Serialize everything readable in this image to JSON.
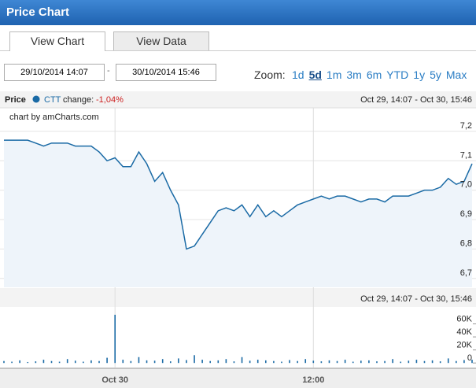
{
  "header": {
    "title": "Price Chart"
  },
  "tabs": [
    "View Chart",
    "View Data"
  ],
  "date_range": {
    "from": "29/10/2014 14:07",
    "separator": "-",
    "to": "30/10/2014 15:46"
  },
  "zoom": {
    "label": "Zoom:",
    "options": [
      "1d",
      "5d",
      "1m",
      "3m",
      "6m",
      "YTD",
      "1y",
      "5y",
      "Max"
    ],
    "selected": "5d"
  },
  "chart_data": {
    "type": "stock",
    "legend_title": "Price",
    "change_label": "change:",
    "change": "-1,04%",
    "range_label": "Oct 29, 14:07 - Oct 30, 15:46",
    "credit": "chart by amCharts.com",
    "grid": true,
    "categories": [
      null,
      null,
      null,
      null,
      null,
      null,
      null,
      null,
      null,
      null,
      null,
      null,
      null,
      null,
      "Oct 30",
      null,
      null,
      null,
      null,
      null,
      null,
      null,
      null,
      null,
      null,
      null,
      null,
      null,
      null,
      null,
      null,
      null,
      null,
      null,
      null,
      null,
      null,
      null,
      null,
      "12:00",
      null,
      null,
      null,
      null,
      null,
      null,
      null,
      null,
      null,
      null,
      null,
      null,
      null,
      null,
      null,
      null,
      null,
      null,
      null,
      null
    ],
    "ylim": [
      6.67,
      7.28
    ],
    "yticks": [
      {
        "value": 6.7,
        "label": "6,7"
      },
      {
        "value": 6.8,
        "label": "6,8"
      },
      {
        "value": 6.9,
        "label": "6,9"
      },
      {
        "value": 7.0,
        "label": "7,0"
      },
      {
        "value": 7.1,
        "label": "7,1"
      },
      {
        "value": 7.2,
        "label": "7,2"
      }
    ],
    "y2lim": [
      -7000,
      86000
    ],
    "y2ticks": [
      {
        "value": 0,
        "label": "0"
      },
      {
        "value": 20000,
        "label": "20K"
      },
      {
        "value": 40000,
        "label": "40K"
      },
      {
        "value": 60000,
        "label": "60K"
      }
    ],
    "series": [
      {
        "name": "CTT",
        "color": "#1a6aa5",
        "fill": "#eef4fa",
        "values": [
          7.17,
          7.17,
          7.17,
          7.17,
          7.16,
          7.15,
          7.16,
          7.16,
          7.16,
          7.15,
          7.15,
          7.15,
          7.13,
          7.1,
          7.11,
          7.08,
          7.08,
          7.13,
          7.09,
          7.03,
          7.06,
          7.0,
          6.95,
          6.8,
          6.81,
          6.85,
          6.89,
          6.93,
          6.94,
          6.93,
          6.95,
          6.91,
          6.95,
          6.91,
          6.93,
          6.91,
          6.93,
          6.95,
          6.96,
          6.97,
          6.98,
          6.97,
          6.98,
          6.98,
          6.97,
          6.96,
          6.97,
          6.97,
          6.96,
          6.98,
          6.98,
          6.98,
          6.99,
          7.0,
          7.0,
          7.01,
          7.04,
          7.02,
          7.03,
          7.09
        ]
      },
      {
        "axis": "y2",
        "color": "#1a6aa5",
        "values": [
          3000,
          2000,
          4000,
          1500,
          2500,
          5000,
          3000,
          2000,
          6000,
          3500,
          2000,
          4000,
          3000,
          8000,
          74000,
          5000,
          3000,
          9000,
          4000,
          3500,
          6000,
          2500,
          7000,
          4500,
          12000,
          5000,
          3000,
          4000,
          6000,
          2500,
          9000,
          3500,
          5000,
          4000,
          3000,
          2000,
          4500,
          3000,
          6000,
          3500,
          2500,
          4000,
          3000,
          5000,
          2000,
          3500,
          4000,
          2500,
          3000,
          6000,
          2000,
          3500,
          5000,
          3000,
          4000,
          2500,
          7000,
          3000,
          4500,
          5000
        ]
      }
    ]
  }
}
